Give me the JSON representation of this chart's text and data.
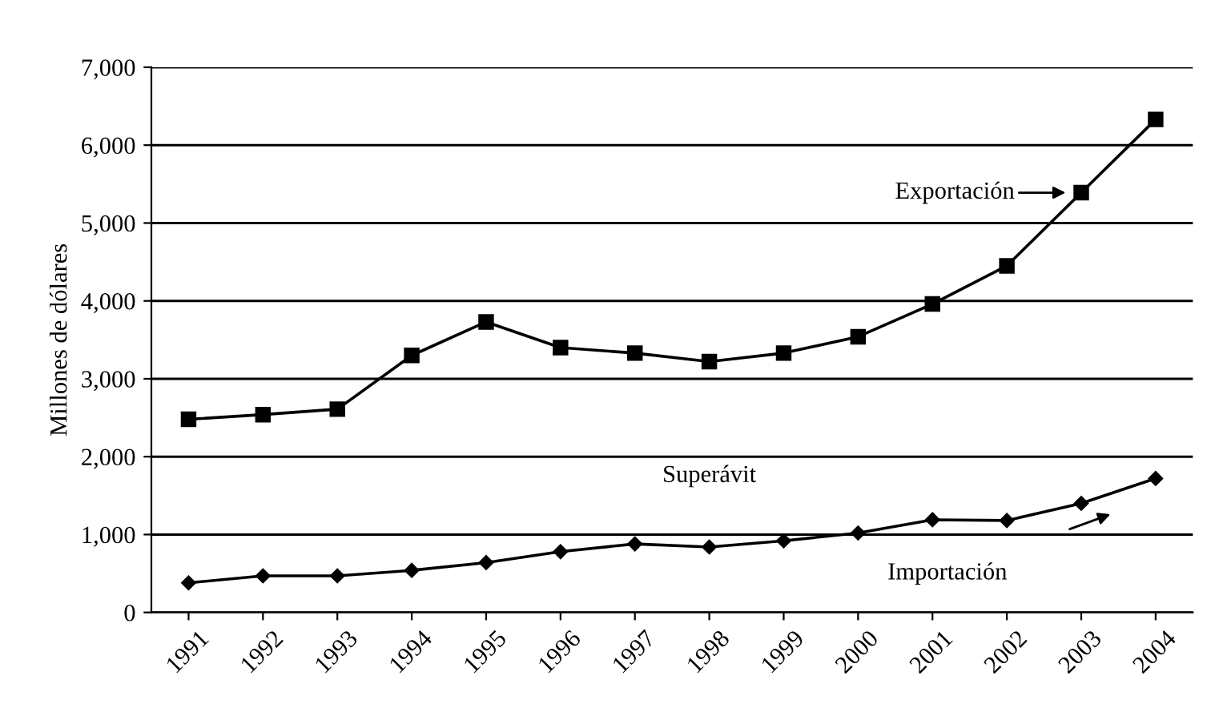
{
  "chart_data": {
    "type": "line",
    "ylabel": "Millones de dólares",
    "categories": [
      "1991",
      "1992",
      "1993",
      "1994",
      "1995",
      "1996",
      "1997",
      "1998",
      "1999",
      "2000",
      "2001",
      "2002",
      "2003",
      "2004"
    ],
    "series": [
      {
        "color": "#000000",
        "marker": "square",
        "values": [
          2480,
          2540,
          2610,
          3300,
          3730,
          3400,
          3330,
          3220,
          3330,
          3540,
          3960,
          4450,
          5390,
          6330
        ]
      },
      {
        "color": "#000000",
        "marker": "diamond",
        "values": [
          380,
          470,
          470,
          540,
          640,
          780,
          880,
          840,
          920,
          1020,
          1190,
          1180,
          1400,
          1720
        ]
      }
    ],
    "annotations": [
      {
        "text": "Exportación",
        "x": "2003",
        "y": 5390
      },
      "Importación",
      "Superávit"
    ],
    "ylim": [
      0,
      7000
    ],
    "yticks": [
      {
        "value": 0,
        "label": "0"
      },
      {
        "value": 1000,
        "label": "1,000"
      },
      {
        "value": 2000,
        "label": "2,000"
      },
      {
        "value": 3000,
        "label": "3,000"
      },
      {
        "value": 4000,
        "label": "4,000"
      },
      {
        "value": 5000,
        "label": "5,000"
      },
      {
        "value": 6000,
        "label": "6,000"
      },
      {
        "value": 7000,
        "label": "7,000"
      }
    ],
    "grid": "y",
    "legend": false,
    "line_style": "solid"
  }
}
